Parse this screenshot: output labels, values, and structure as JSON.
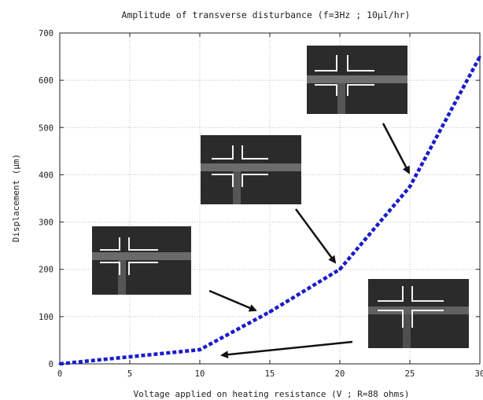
{
  "chart_data": {
    "type": "line",
    "title": "Amplitude of transverse disturbance (f=3Hz ; 10µl/hr)",
    "xlabel": "Voltage applied on heating resistance (V ; R=88 ohms)",
    "ylabel": "Displacement (µm)",
    "xlim": [
      0,
      30
    ],
    "ylim": [
      0,
      700
    ],
    "xticks": [
      0,
      5,
      10,
      15,
      20,
      25,
      30
    ],
    "yticks": [
      0,
      100,
      200,
      300,
      400,
      500,
      600,
      700
    ],
    "grid": true,
    "series": [
      {
        "x": [
          0,
          10,
          15,
          20,
          25,
          30
        ],
        "y": [
          0,
          30,
          110,
          200,
          375,
          650
        ],
        "color": "#1a1acc",
        "style": "dashed"
      }
    ],
    "insets": [
      {
        "description": "micrograph-cross-channel-small-deflection"
      },
      {
        "description": "micrograph-cross-channel-medium-deflection"
      },
      {
        "description": "micrograph-cross-channel-large-deflection"
      },
      {
        "description": "micrograph-cross-channel-no-deflection"
      }
    ]
  }
}
